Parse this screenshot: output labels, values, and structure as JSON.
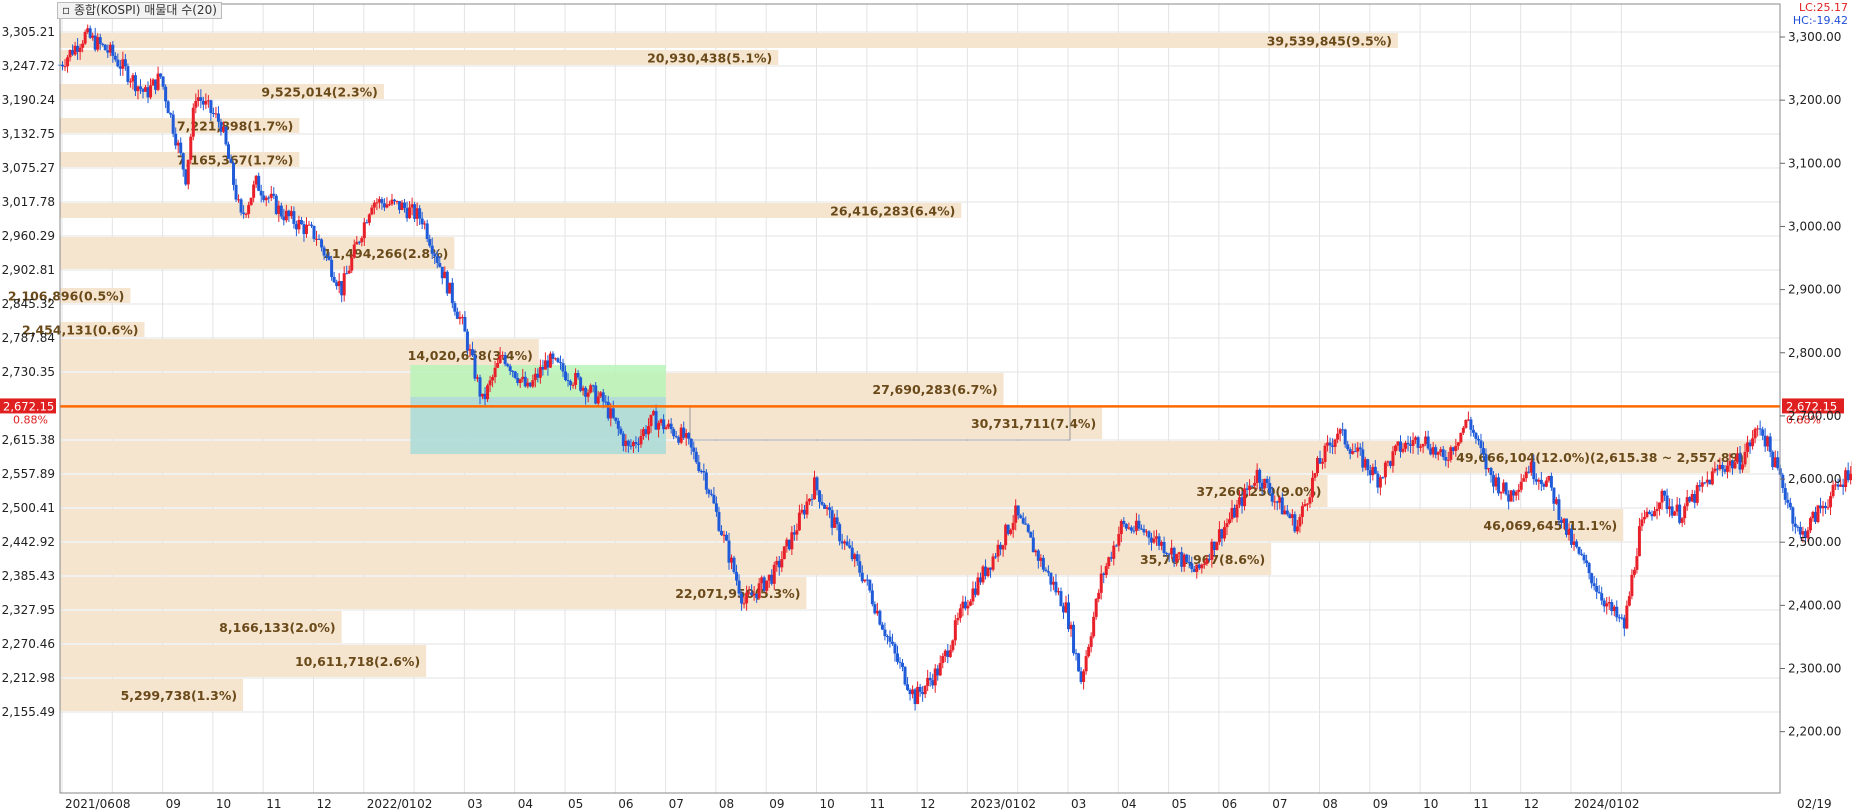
{
  "header": {
    "title": "종합(KOSPI) 매물대 수(20)",
    "lc": "LC:25.17",
    "hc": "HC:-19.42"
  },
  "colors": {
    "up": "#e8202a",
    "down": "#1f5bd8",
    "profile": "#f5e5cf",
    "current_line": "#ff6a00",
    "box_green": "#b8f5b8",
    "box_blue": "#a8dcd8"
  },
  "chart_data": {
    "type": "candlestick-volume-profile",
    "left_axis_ticks": [
      "3,305.21",
      "3,247.72",
      "3,190.24",
      "3,132.75",
      "3,075.27",
      "3,017.78",
      "2,960.29",
      "2,902.81",
      "2,845.32",
      "2,787.84",
      "2,730.35",
      "2,672.15",
      "2,615.38",
      "2,557.89",
      "2,500.41",
      "2,442.92",
      "2,385.43",
      "2,327.95",
      "2,270.46",
      "2,212.98",
      "2,155.49"
    ],
    "right_axis_ticks": [
      "3,300.00",
      "3,200.00",
      "3,100.00",
      "3,000.00",
      "2,900.00",
      "2,800.00",
      "2,700.00",
      "2,600.00",
      "2,500.00",
      "2,400.00",
      "2,300.00",
      "2,200.00"
    ],
    "x_ticks": [
      "2021/06",
      "08",
      "09",
      "10",
      "11",
      "12",
      "2022/01",
      "02",
      "03",
      "04",
      "05",
      "06",
      "07",
      "08",
      "09",
      "10",
      "11",
      "12",
      "2023/01",
      "02",
      "03",
      "04",
      "05",
      "06",
      "07",
      "08",
      "09",
      "10",
      "11",
      "12",
      "2024/01",
      "02",
      "02/19"
    ],
    "current_value": {
      "value": 2672.15,
      "label": "2,672.15",
      "change": "0.88%"
    },
    "volume_profile": [
      {
        "low": 3276.47,
        "high": 3305.21,
        "label": "39,539,845(9.5%)",
        "share": 9.5
      },
      {
        "low": 3247.72,
        "high": 3276.47,
        "label": "20,930,438(5.1%)",
        "share": 5.1
      },
      {
        "low": 3190.24,
        "high": 3218.98,
        "label": "9,525,014(2.3%)",
        "share": 2.3
      },
      {
        "low": 3132.75,
        "high": 3161.5,
        "label": "7,221,898(1.7%)",
        "share": 1.7
      },
      {
        "low": 3075.27,
        "high": 3104.01,
        "label": "7,165,367(1.7%)",
        "share": 1.7
      },
      {
        "low": 2989.04,
        "high": 3017.78,
        "label": "26,416,283(6.4%)",
        "share": 6.4
      },
      {
        "low": 2902.81,
        "high": 2960.29,
        "label": "11,494,266(2.8%)",
        "share": 2.8
      },
      {
        "low": 2845.32,
        "high": 2874.07,
        "label": "2,106,896(0.5%)",
        "share": 0.5
      },
      {
        "low": 2787.84,
        "high": 2816.58,
        "label": "2,454,131(0.6%)",
        "share": 0.6
      },
      {
        "low": 2730.35,
        "high": 2787.84,
        "label": "14,020,658(3.4%)",
        "share": 3.4
      },
      {
        "low": 2672.15,
        "high": 2730.35,
        "label": "27,690,283(6.7%)",
        "share": 6.7
      },
      {
        "low": 2615.38,
        "high": 2672.15,
        "label": "30,731,711(7.4%)",
        "share": 7.4
      },
      {
        "low": 2557.89,
        "high": 2615.38,
        "label": "49,666,104(12.0%)(2,615.38 ~ 2,557.89)",
        "share": 12.0
      },
      {
        "low": 2500.41,
        "high": 2557.89,
        "label": "37,260,250(9.0%)",
        "share": 9.0
      },
      {
        "low": 2442.92,
        "high": 2500.41,
        "label": "46,069,645(11.1%)",
        "share": 11.1
      },
      {
        "low": 2385.43,
        "high": 2442.92,
        "label": "35,761,967(8.6%)",
        "share": 8.6
      },
      {
        "low": 2327.95,
        "high": 2385.43,
        "label": "22,071,950(5.3%)",
        "share": 5.3
      },
      {
        "low": 2270.46,
        "high": 2327.95,
        "label": "8,166,133(2.0%)",
        "share": 2.0
      },
      {
        "low": 2212.98,
        "high": 2270.46,
        "label": "10,611,718(2.6%)",
        "share": 2.6
      },
      {
        "low": 2155.49,
        "high": 2212.98,
        "label": "5,299,738(1.3%)",
        "share": 1.3
      }
    ],
    "highlight_zone": {
      "from_month": 8,
      "to_month": 13,
      "low": 2615.38,
      "high": 2730.35
    },
    "price_path": [
      [
        0,
        3250
      ],
      [
        0.5,
        3300
      ],
      [
        1,
        3270
      ],
      [
        1.7,
        3200
      ],
      [
        2,
        3230
      ],
      [
        2.5,
        3060
      ],
      [
        2.7,
        3200
      ],
      [
        3.2,
        3150
      ],
      [
        3.6,
        2990
      ],
      [
        3.9,
        3050
      ],
      [
        4.4,
        3000
      ],
      [
        5.1,
        2960
      ],
      [
        5.6,
        2870
      ],
      [
        6.2,
        3020
      ],
      [
        6.8,
        3010
      ],
      [
        7.2,
        2990
      ],
      [
        7.6,
        2900
      ],
      [
        8.0,
        2810
      ],
      [
        8.4,
        2680
      ],
      [
        8.8,
        2760
      ],
      [
        9.3,
        2700
      ],
      [
        9.7,
        2750
      ],
      [
        10.2,
        2720
      ],
      [
        10.8,
        2680
      ],
      [
        11.3,
        2600
      ],
      [
        11.8,
        2650
      ],
      [
        12.4,
        2620
      ],
      [
        12.8,
        2560
      ],
      [
        13.3,
        2420
      ],
      [
        13.6,
        2340
      ],
      [
        14.2,
        2390
      ],
      [
        14.6,
        2460
      ],
      [
        15.0,
        2540
      ],
      [
        15.4,
        2470
      ],
      [
        16.0,
        2380
      ],
      [
        16.6,
        2250
      ],
      [
        17.0,
        2180
      ],
      [
        17.5,
        2230
      ],
      [
        18.0,
        2340
      ],
      [
        18.5,
        2410
      ],
      [
        19.0,
        2490
      ],
      [
        19.5,
        2410
      ],
      [
        20.0,
        2330
      ],
      [
        20.3,
        2210
      ],
      [
        20.7,
        2380
      ],
      [
        21.1,
        2470
      ],
      [
        21.6,
        2460
      ],
      [
        22.2,
        2420
      ],
      [
        22.6,
        2390
      ],
      [
        23.0,
        2450
      ],
      [
        23.4,
        2500
      ],
      [
        23.8,
        2560
      ],
      [
        24.2,
        2510
      ],
      [
        24.6,
        2470
      ],
      [
        25.0,
        2570
      ],
      [
        25.4,
        2630
      ],
      [
        25.8,
        2590
      ],
      [
        26.2,
        2550
      ],
      [
        26.6,
        2600
      ],
      [
        27.1,
        2620
      ],
      [
        27.5,
        2580
      ],
      [
        28.0,
        2650
      ],
      [
        28.4,
        2560
      ],
      [
        28.8,
        2520
      ],
      [
        29.2,
        2570
      ],
      [
        29.6,
        2540
      ],
      [
        30.0,
        2450
      ],
      [
        30.4,
        2390
      ],
      [
        30.8,
        2330
      ],
      [
        31.1,
        2300
      ],
      [
        31.4,
        2460
      ],
      [
        31.8,
        2520
      ],
      [
        32.2,
        2490
      ],
      [
        32.6,
        2530
      ],
      [
        33.0,
        2570
      ],
      [
        33.4,
        2580
      ],
      [
        33.8,
        2640
      ],
      [
        34.2,
        2550
      ],
      [
        34.6,
        2450
      ],
      [
        35.0,
        2500
      ],
      [
        35.4,
        2540
      ],
      [
        35.8,
        2600
      ],
      [
        36.0,
        2672
      ]
    ]
  }
}
